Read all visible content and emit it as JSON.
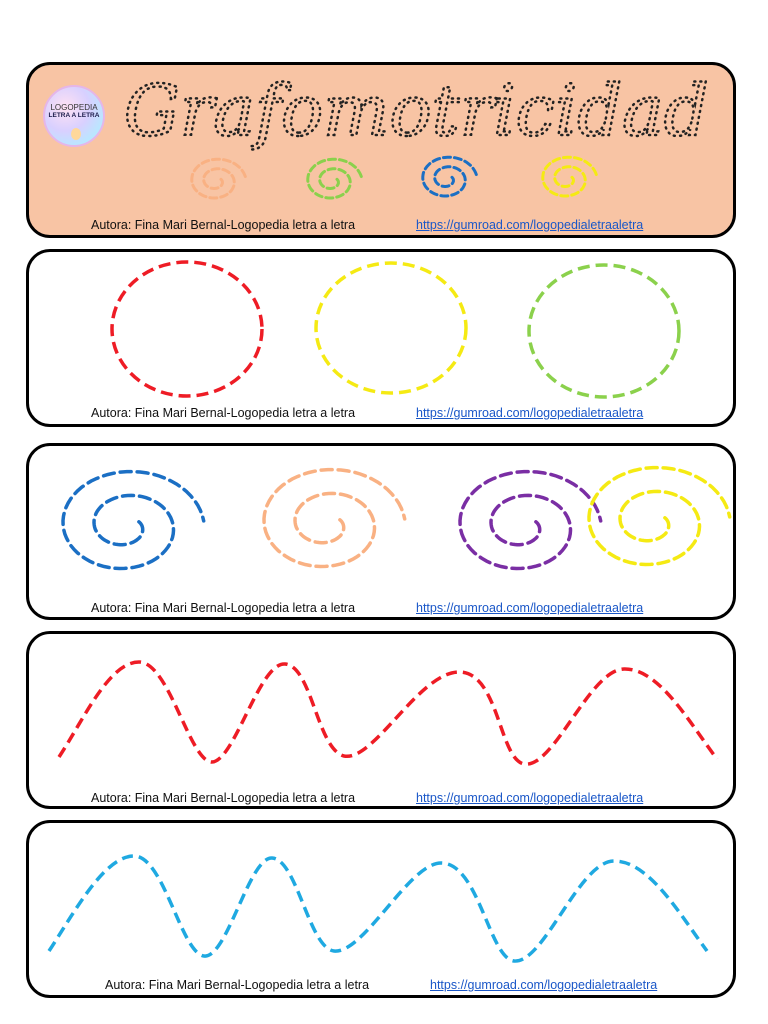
{
  "header": {
    "title": "Grafomotricidad",
    "logo": {
      "line1": "LOGOPEDIA",
      "line2": "LETRA A LETRA"
    },
    "background": "#f8c4a4",
    "mini_spiral_colors": [
      "#f9b183",
      "#8bd14c",
      "#1b6fc4",
      "#f5ea13"
    ]
  },
  "credit": {
    "author": "Autora: Fina Mari Bernal-Logopedia letra a letra",
    "url": "https://gumroad.com/logopedialetraaletra"
  },
  "circles": {
    "colors": [
      "#ee1c25",
      "#f5ea13",
      "#8bd14c"
    ]
  },
  "spirals": {
    "colors": [
      "#1b6fc4",
      "#f9b183",
      "#7a2ea4",
      "#f5ea13"
    ]
  },
  "wave1": {
    "color": "#ee1c25"
  },
  "wave2": {
    "color": "#1fa9e1"
  }
}
